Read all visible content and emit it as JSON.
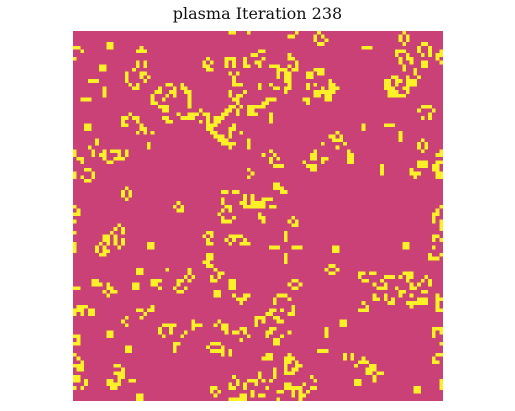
{
  "figure": {
    "title": "plasma Iteration 238"
  },
  "colors": {
    "background": "#c94177",
    "live_cell": "#fcf126"
  },
  "grid": {
    "rows": 100,
    "cols": 100,
    "iteration": 238,
    "seed": 238
  }
}
